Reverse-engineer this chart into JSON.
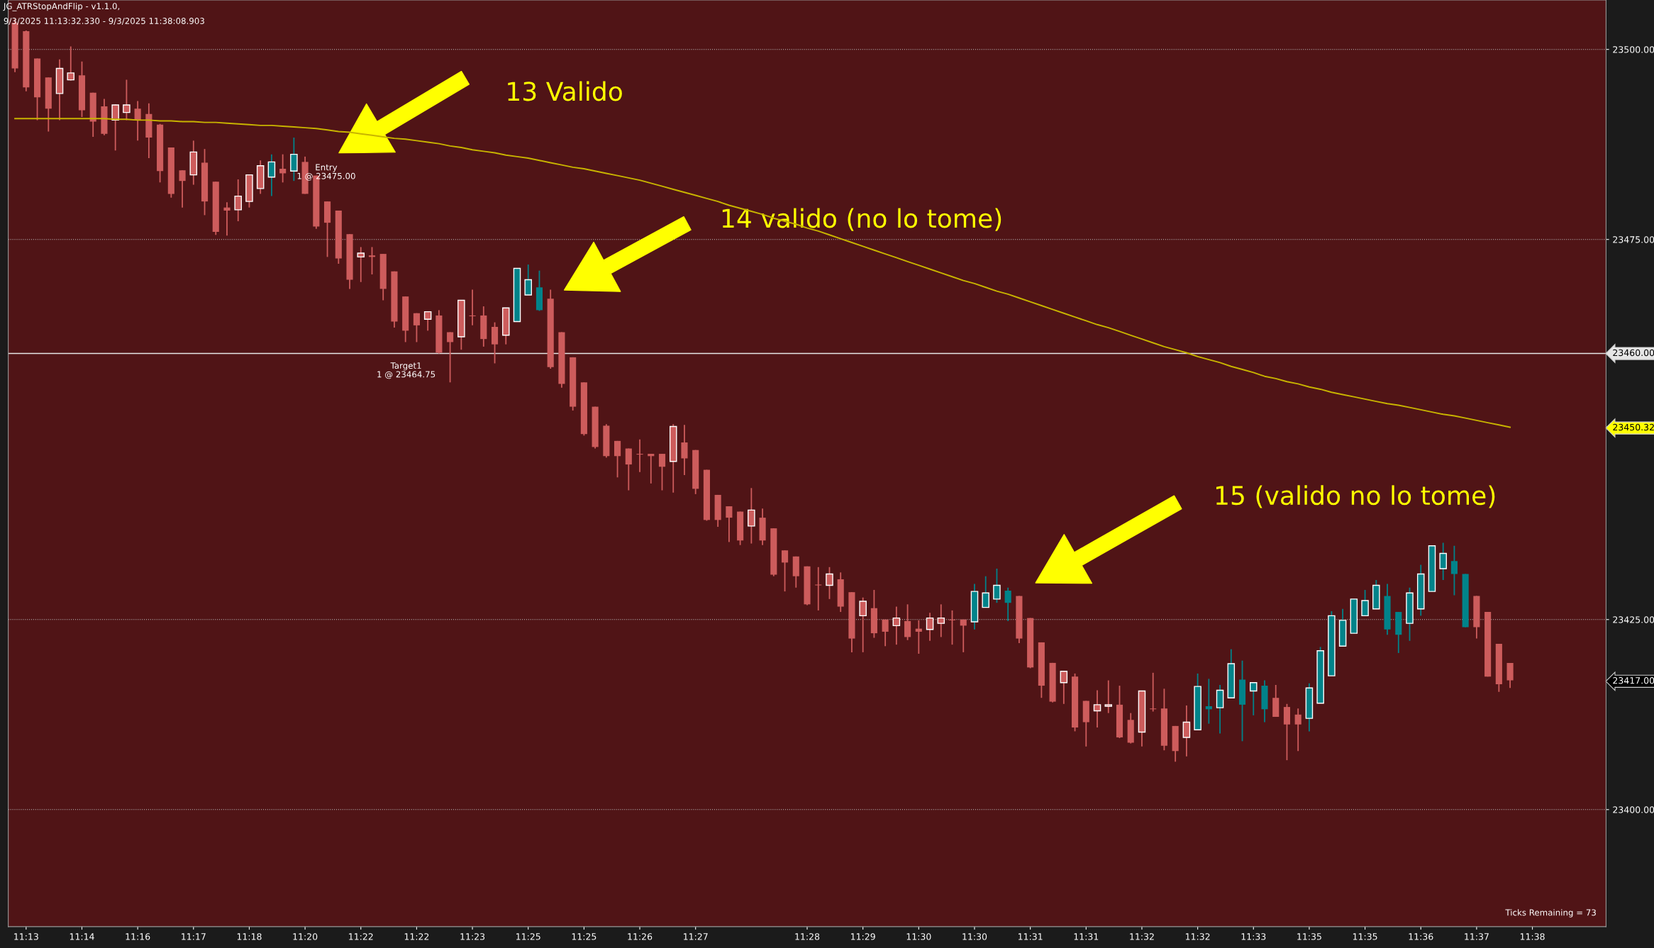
{
  "chart_data": {
    "type": "candlestick",
    "categories": [
      null,
      "11:13",
      null,
      null,
      null,
      null,
      "11:14",
      null,
      null,
      null,
      null,
      "11:16",
      null,
      null,
      null,
      null,
      "11:17",
      null,
      null,
      null,
      null,
      "11:18",
      null,
      null,
      null,
      null,
      "11:20",
      null,
      null,
      null,
      null,
      "11:22",
      null,
      null,
      null,
      null,
      "11:22",
      null,
      null,
      null,
      null,
      "11:23",
      null,
      null,
      null,
      null,
      "11:25",
      null,
      null,
      null,
      null,
      "11:25",
      null,
      null,
      null,
      null,
      "11:26",
      null,
      null,
      null,
      null,
      "11:27",
      null,
      null,
      null,
      null,
      null,
      null,
      null,
      null,
      null,
      "11:28",
      null,
      null,
      null,
      null,
      "11:29",
      null,
      null,
      null,
      null,
      "11:30",
      null,
      null,
      null,
      null,
      "11:30",
      null,
      null,
      null,
      null,
      "11:31",
      null,
      null,
      null,
      null,
      "11:31",
      null,
      null,
      null,
      null,
      "11:32",
      null,
      null,
      null,
      null,
      "11:32",
      null,
      null,
      null,
      null,
      "11:33",
      null,
      null,
      null,
      null,
      "11:35",
      null,
      null,
      null,
      null,
      "11:35",
      null,
      null,
      null,
      null,
      "11:36",
      null,
      null,
      null,
      null,
      "11:37",
      null,
      null,
      null,
      null,
      "11:38"
    ],
    "ohlc": [
      [
        23503.5,
        23504.0,
        23497.0,
        23497.5
      ],
      [
        23502.4,
        23502.5,
        23494.5,
        23495.0
      ],
      [
        23498.8,
        23498.8,
        23490.7,
        23493.7
      ],
      [
        23496.3,
        23496.3,
        23489.2,
        23492.2
      ],
      [
        23494.2,
        23498.7,
        23490.7,
        23497.5
      ],
      [
        23496.0,
        23500.4,
        23495.9,
        23496.9
      ],
      [
        23496.6,
        23498.4,
        23491.1,
        23492.0
      ],
      [
        23494.3,
        23494.3,
        23488.5,
        23490.5
      ],
      [
        23492.5,
        23493.5,
        23488.7,
        23488.9
      ],
      [
        23490.7,
        23492.8,
        23486.7,
        23492.7
      ],
      [
        23491.7,
        23496.0,
        23490.7,
        23492.7
      ],
      [
        23492.2,
        23493.2,
        23488.0,
        23490.7
      ],
      [
        23491.5,
        23492.9,
        23485.7,
        23488.4
      ],
      [
        23490.1,
        23490.2,
        23482.5,
        23484.0
      ],
      [
        23487.1,
        23487.1,
        23480.5,
        23481.0
      ],
      [
        23484.1,
        23484.1,
        23479.2,
        23482.7
      ],
      [
        23483.5,
        23488.0,
        23482.2,
        23486.5
      ],
      [
        23485.1,
        23486.9,
        23478.2,
        23480.0
      ],
      [
        23482.6,
        23482.6,
        23475.6,
        23476.0
      ],
      [
        23479.2,
        23479.9,
        23475.5,
        23478.8
      ],
      [
        23478.9,
        23482.9,
        23477.4,
        23480.7
      ],
      [
        23480.0,
        23483.5,
        23479.2,
        23483.5
      ],
      [
        23481.7,
        23485.4,
        23481.0,
        23484.7
      ],
      [
        23483.2,
        23486.2,
        23480.7,
        23485.2
      ],
      [
        23484.3,
        23486.2,
        23482.5,
        23483.7
      ],
      [
        23484.0,
        23488.4,
        23482.7,
        23486.2
      ],
      [
        23485.2,
        23485.9,
        23481.0,
        23481.0
      ],
      [
        23483.4,
        23483.4,
        23476.4,
        23476.7
      ],
      [
        23480.0,
        23480.0,
        23472.7,
        23477.2
      ],
      [
        23478.8,
        23478.8,
        23471.8,
        23472.5
      ],
      [
        23475.7,
        23475.7,
        23468.5,
        23469.7
      ],
      [
        23472.7,
        23474.0,
        23469.4,
        23473.2
      ],
      [
        23472.9,
        23474.0,
        23470.4,
        23472.7
      ],
      [
        23473.1,
        23473.1,
        23467.0,
        23468.5
      ],
      [
        23470.8,
        23470.8,
        23463.4,
        23464.2
      ],
      [
        23467.5,
        23467.5,
        23461.5,
        23463.0
      ],
      [
        23465.3,
        23465.3,
        23461.5,
        23463.7
      ],
      [
        23464.5,
        23465.5,
        23463.0,
        23465.5
      ],
      [
        23465.0,
        23465.7,
        23460.0,
        23460.1
      ],
      [
        23462.8,
        23462.8,
        23456.2,
        23461.5
      ],
      [
        23462.2,
        23467.0,
        23460.5,
        23467.0
      ],
      [
        23465.0,
        23468.4,
        23463.7,
        23464.9
      ],
      [
        23465.0,
        23466.2,
        23460.9,
        23461.9
      ],
      [
        23463.5,
        23464.1,
        23458.7,
        23461.2
      ],
      [
        23462.4,
        23466.0,
        23461.2,
        23466.0
      ],
      [
        23464.2,
        23471.2,
        23464.2,
        23471.2
      ],
      [
        23467.7,
        23471.7,
        23467.7,
        23469.7
      ],
      [
        23468.7,
        23470.9,
        23465.6,
        23465.7
      ],
      [
        23467.2,
        23468.4,
        23458.0,
        23458.2
      ],
      [
        23462.8,
        23462.8,
        23455.5,
        23456.0
      ],
      [
        23459.5,
        23459.5,
        23452.5,
        23453.0
      ],
      [
        23456.2,
        23456.2,
        23449.2,
        23449.4
      ],
      [
        23453.0,
        23453.0,
        23447.5,
        23447.7
      ],
      [
        23450.5,
        23450.7,
        23446.3,
        23446.5
      ],
      [
        23448.5,
        23448.5,
        23443.7,
        23446.5
      ],
      [
        23447.5,
        23447.5,
        23442.0,
        23445.4
      ],
      [
        23446.8,
        23448.7,
        23444.4,
        23446.7
      ],
      [
        23446.8,
        23446.8,
        23442.9,
        23446.5
      ],
      [
        23446.8,
        23446.8,
        23442.0,
        23445.1
      ],
      [
        23445.8,
        23450.7,
        23441.7,
        23450.4
      ],
      [
        23448.3,
        23450.6,
        23444.0,
        23446.2
      ],
      [
        23447.3,
        23447.3,
        23441.5,
        23442.2
      ],
      [
        23444.7,
        23444.7,
        23438.0,
        23438.1
      ],
      [
        23441.4,
        23441.4,
        23437.2,
        23438.1
      ],
      [
        23439.9,
        23439.9,
        23435.2,
        23438.4
      ],
      [
        23439.2,
        23439.2,
        23434.8,
        23435.4
      ],
      [
        23437.3,
        23442.3,
        23435.0,
        23439.4
      ],
      [
        23438.4,
        23439.6,
        23434.8,
        23435.4
      ],
      [
        23437.0,
        23437.0,
        23430.7,
        23430.9
      ],
      [
        23434.1,
        23434.1,
        23428.7,
        23432.5
      ],
      [
        23433.3,
        23433.3,
        23429.2,
        23430.7
      ],
      [
        23432.0,
        23432.0,
        23426.9,
        23427.0
      ],
      [
        23429.6,
        23431.9,
        23426.2,
        23429.5
      ],
      [
        23429.5,
        23431.9,
        23427.7,
        23431.0
      ],
      [
        23430.3,
        23431.2,
        23426.0,
        23426.7
      ],
      [
        23428.6,
        23428.6,
        23420.7,
        23422.5
      ],
      [
        23425.5,
        23427.9,
        23420.7,
        23427.4
      ],
      [
        23426.5,
        23428.9,
        23422.6,
        23423.2
      ],
      [
        23425.0,
        23425.0,
        23421.5,
        23423.4
      ],
      [
        23424.2,
        23426.7,
        23421.7,
        23425.2
      ],
      [
        23424.8,
        23427.0,
        23422.3,
        23422.7
      ],
      [
        23423.8,
        23424.9,
        23420.5,
        23423.4
      ],
      [
        23423.7,
        23425.9,
        23422.2,
        23425.2
      ],
      [
        23424.5,
        23427.0,
        23422.7,
        23425.2
      ],
      [
        23425.0,
        23426.2,
        23421.7,
        23424.9
      ],
      [
        23425.0,
        23425.0,
        23420.7,
        23424.2
      ],
      [
        23424.7,
        23429.7,
        23423.7,
        23428.7
      ],
      [
        23426.6,
        23430.7,
        23426.6,
        23428.5
      ],
      [
        23427.7,
        23431.7,
        23427.2,
        23429.5
      ],
      [
        23428.8,
        23429.2,
        23424.8,
        23427.2
      ],
      [
        23428.1,
        23428.1,
        23421.9,
        23422.5
      ],
      [
        23425.2,
        23425.2,
        23418.6,
        23418.7
      ],
      [
        23422.0,
        23422.0,
        23414.7,
        23416.3
      ],
      [
        23419.3,
        23419.3,
        23414.1,
        23414.2
      ],
      [
        23416.7,
        23418.2,
        23413.9,
        23418.2
      ],
      [
        23417.5,
        23417.9,
        23410.3,
        23410.8
      ],
      [
        23414.3,
        23414.3,
        23408.3,
        23411.5
      ],
      [
        23413.0,
        23415.7,
        23410.8,
        23413.8
      ],
      [
        23413.6,
        23417.0,
        23412.7,
        23413.8
      ],
      [
        23413.8,
        23416.3,
        23409.4,
        23409.5
      ],
      [
        23411.8,
        23412.7,
        23408.7,
        23408.8
      ],
      [
        23410.2,
        23415.6,
        23408.3,
        23415.6
      ],
      [
        23413.3,
        23418.0,
        23412.9,
        23413.2
      ],
      [
        23413.3,
        23415.9,
        23407.8,
        23408.4
      ],
      [
        23411.0,
        23411.0,
        23406.3,
        23407.7
      ],
      [
        23409.5,
        23413.7,
        23407.0,
        23411.5
      ],
      [
        23410.5,
        23417.9,
        23410.5,
        23416.2
      ],
      [
        23413.6,
        23417.2,
        23411.3,
        23413.2
      ],
      [
        23413.4,
        23416.4,
        23410.0,
        23415.7
      ],
      [
        23414.7,
        23421.1,
        23414.7,
        23419.2
      ],
      [
        23417.1,
        23419.6,
        23409.0,
        23413.8
      ],
      [
        23415.6,
        23416.7,
        23412.4,
        23416.7
      ],
      [
        23416.3,
        23417.0,
        23411.5,
        23413.2
      ],
      [
        23414.7,
        23416.4,
        23412.2,
        23412.2
      ],
      [
        23413.5,
        23413.9,
        23406.5,
        23411.2
      ],
      [
        23412.5,
        23413.3,
        23407.7,
        23411.2
      ],
      [
        23412.0,
        23416.6,
        23410.3,
        23416.0
      ],
      [
        23414.0,
        23421.4,
        23414.0,
        23420.9
      ],
      [
        23417.6,
        23426.1,
        23417.6,
        23425.5
      ],
      [
        23421.5,
        23426.4,
        23421.5,
        23424.9
      ],
      [
        23423.2,
        23427.7,
        23423.2,
        23427.7
      ],
      [
        23425.5,
        23428.9,
        23425.5,
        23427.5
      ],
      [
        23426.4,
        23430.2,
        23426.4,
        23429.5
      ],
      [
        23428.1,
        23429.7,
        23423.0,
        23423.7
      ],
      [
        23426.0,
        23426.0,
        23420.6,
        23423.0
      ],
      [
        23424.5,
        23429.2,
        23422.2,
        23428.5
      ],
      [
        23426.4,
        23432.2,
        23425.5,
        23431.0
      ],
      [
        23428.7,
        23434.7,
        23428.7,
        23434.7
      ],
      [
        23431.7,
        23435.1,
        23430.2,
        23433.7
      ],
      [
        23432.7,
        23434.7,
        23428.2,
        23431.0
      ],
      [
        23431.0,
        23431.0,
        23424.0,
        23424.0
      ],
      [
        23428.1,
        23428.1,
        23422.5,
        23424.0
      ],
      [
        23426.0,
        23426.0,
        23417.5,
        23417.5
      ],
      [
        23421.8,
        23421.8,
        23415.5,
        23416.5
      ],
      [
        23419.3,
        23419.3,
        23416.0,
        23417.0
      ],
      null,
      null
    ],
    "colors": [
      "#cd5c5c",
      "#cd5c5c",
      "#cd5c5c",
      "#cd5c5c",
      "#cd5c5c",
      "#cd5c5c",
      "#cd5c5c",
      "#cd5c5c",
      "#cd5c5c",
      "#cd5c5c",
      "#cd5c5c",
      "#cd5c5c",
      "#cd5c5c",
      "#cd5c5c",
      "#cd5c5c",
      "#cd5c5c",
      "#cd5c5c",
      "#cd5c5c",
      "#cd5c5c",
      "#cd5c5c",
      "#cd5c5c",
      "#cd5c5c",
      "#cd5c5c",
      "#00838a",
      "#cd5c5c",
      "#00838a",
      "#cd5c5c",
      "#cd5c5c",
      "#cd5c5c",
      "#cd5c5c",
      "#cd5c5c",
      "#cd5c5c",
      "#cd5c5c",
      "#cd5c5c",
      "#cd5c5c",
      "#cd5c5c",
      "#cd5c5c",
      "#cd5c5c",
      "#cd5c5c",
      "#cd5c5c",
      "#cd5c5c",
      "#cd5c5c",
      "#cd5c5c",
      "#cd5c5c",
      "#cd5c5c",
      "#00838a",
      "#00838a",
      "#00838a",
      "#cd5c5c",
      "#cd5c5c",
      "#cd5c5c",
      "#cd5c5c",
      "#cd5c5c",
      "#cd5c5c",
      "#cd5c5c",
      "#cd5c5c",
      "#cd5c5c",
      "#cd5c5c",
      "#cd5c5c",
      "#cd5c5c",
      "#cd5c5c",
      "#cd5c5c",
      "#cd5c5c",
      "#cd5c5c",
      "#cd5c5c",
      "#cd5c5c",
      "#cd5c5c",
      "#cd5c5c",
      "#cd5c5c",
      "#cd5c5c",
      "#cd5c5c",
      "#cd5c5c",
      "#cd5c5c",
      "#cd5c5c",
      "#cd5c5c",
      "#cd5c5c",
      "#cd5c5c",
      "#cd5c5c",
      "#cd5c5c",
      "#cd5c5c",
      "#cd5c5c",
      "#cd5c5c",
      "#cd5c5c",
      "#cd5c5c",
      "#cd5c5c",
      "#cd5c5c",
      "#00838a",
      "#00838a",
      "#00838a",
      "#00838a",
      "#cd5c5c",
      "#cd5c5c",
      "#cd5c5c",
      "#cd5c5c",
      "#cd5c5c",
      "#cd5c5c",
      "#cd5c5c",
      "#cd5c5c",
      "#cd5c5c",
      "#cd5c5c",
      "#cd5c5c",
      "#cd5c5c",
      "#cd5c5c",
      "#cd5c5c",
      "#cd5c5c",
      "#cd5c5c",
      "#00838a",
      "#00838a",
      "#00838a",
      "#00838a",
      "#00838a",
      "#00838a",
      "#00838a",
      "#cd5c5c",
      "#cd5c5c",
      "#cd5c5c",
      "#00838a",
      "#00838a",
      "#00838a",
      "#00838a",
      "#00838a",
      "#00838a",
      "#00838a",
      "#00838a",
      "#00838a",
      "#00838a",
      "#00838a",
      "#00838a",
      "#00838a",
      "#00838a",
      "#00838a",
      "#cd5c5c",
      "#cd5c5c",
      "#cd5c5c",
      "#cd5c5c",
      null,
      null
    ],
    "series": [
      {
        "type": "line",
        "color": "#c8b400",
        "values": [
          23490.9,
          23490.9,
          23490.9,
          23490.9,
          23490.9,
          23490.9,
          23490.9,
          23490.9,
          23490.9,
          23490.8,
          23490.8,
          23490.7,
          23490.7,
          23490.6,
          23490.6,
          23490.5,
          23490.5,
          23490.4,
          23490.4,
          23490.3,
          23490.2,
          23490.1,
          23490.0,
          23490.0,
          23489.9,
          23489.8,
          23489.7,
          23489.6,
          23489.4,
          23489.2,
          23489.1,
          23488.9,
          23488.7,
          23488.5,
          23488.3,
          23488.2,
          23488.0,
          23487.8,
          23487.6,
          23487.3,
          23487.1,
          23486.8,
          23486.6,
          23486.4,
          23486.1,
          23485.9,
          23485.7,
          23485.4,
          23485.1,
          23484.8,
          23484.5,
          23484.3,
          23484.0,
          23483.7,
          23483.4,
          23483.1,
          23482.8,
          23482.4,
          23482.0,
          23481.6,
          23481.2,
          23480.8,
          23480.4,
          23480.0,
          23479.5,
          23479.1,
          23478.7,
          23478.3,
          23477.8,
          23477.4,
          23477.0,
          23476.5,
          23476.1,
          23475.6,
          23475.1,
          23474.6,
          23474.1,
          23473.6,
          23473.1,
          23472.6,
          23472.1,
          23471.6,
          23471.1,
          23470.6,
          23470.1,
          23469.6,
          23469.2,
          23468.7,
          23468.2,
          23467.8,
          23467.3,
          23466.8,
          23466.3,
          23465.8,
          23465.3,
          23464.8,
          23464.3,
          23463.8,
          23463.4,
          23462.9,
          23462.4,
          23461.9,
          23461.4,
          23460.9,
          23460.5,
          23460.1,
          23459.6,
          23459.2,
          23458.8,
          23458.3,
          23457.9,
          23457.5,
          23457.0,
          23456.7,
          23456.3,
          23456.0,
          23455.6,
          23455.3,
          23454.9,
          23454.6,
          23454.3,
          23454.0,
          23453.7,
          23453.4,
          23453.2,
          23452.9,
          23452.6,
          23452.3,
          23452.0,
          23451.8,
          23451.5,
          23451.2,
          23450.9,
          23450.6,
          23450.3,
          null,
          null
        ]
      }
    ],
    "ylim": [
      23384.6,
      23506.5
    ],
    "yticks": [
      {
        "value": 23400,
        "label": "23400.00"
      },
      {
        "value": 23417,
        "label": "23417.00"
      },
      {
        "value": 23425,
        "label": "23425.00"
      },
      {
        "value": 23450.32,
        "label": "23450.32"
      },
      {
        "value": 23475,
        "label": "23475.00"
      },
      {
        "value": 23500,
        "label": "23500.00"
      }
    ],
    "grid": "y",
    "ref_lines": [
      {
        "axis": "y",
        "value": 23460,
        "label": "23460.00",
        "color": "#e6e6e6",
        "line_style": "solid"
      }
    ],
    "annotations": [
      "JG_ATRStopAndFlip - v1.1.0,",
      "9/3/2025 11:13:32.330 - 9/3/2025 11:38:08.903",
      "13 Valido",
      "14 valido (no lo tome)",
      "15 (valido no lo tome)",
      "Entry\n1 @ 23475.00",
      "Target1\n1 @ 23464.75",
      "Ticks Remaining = 73"
    ]
  }
}
